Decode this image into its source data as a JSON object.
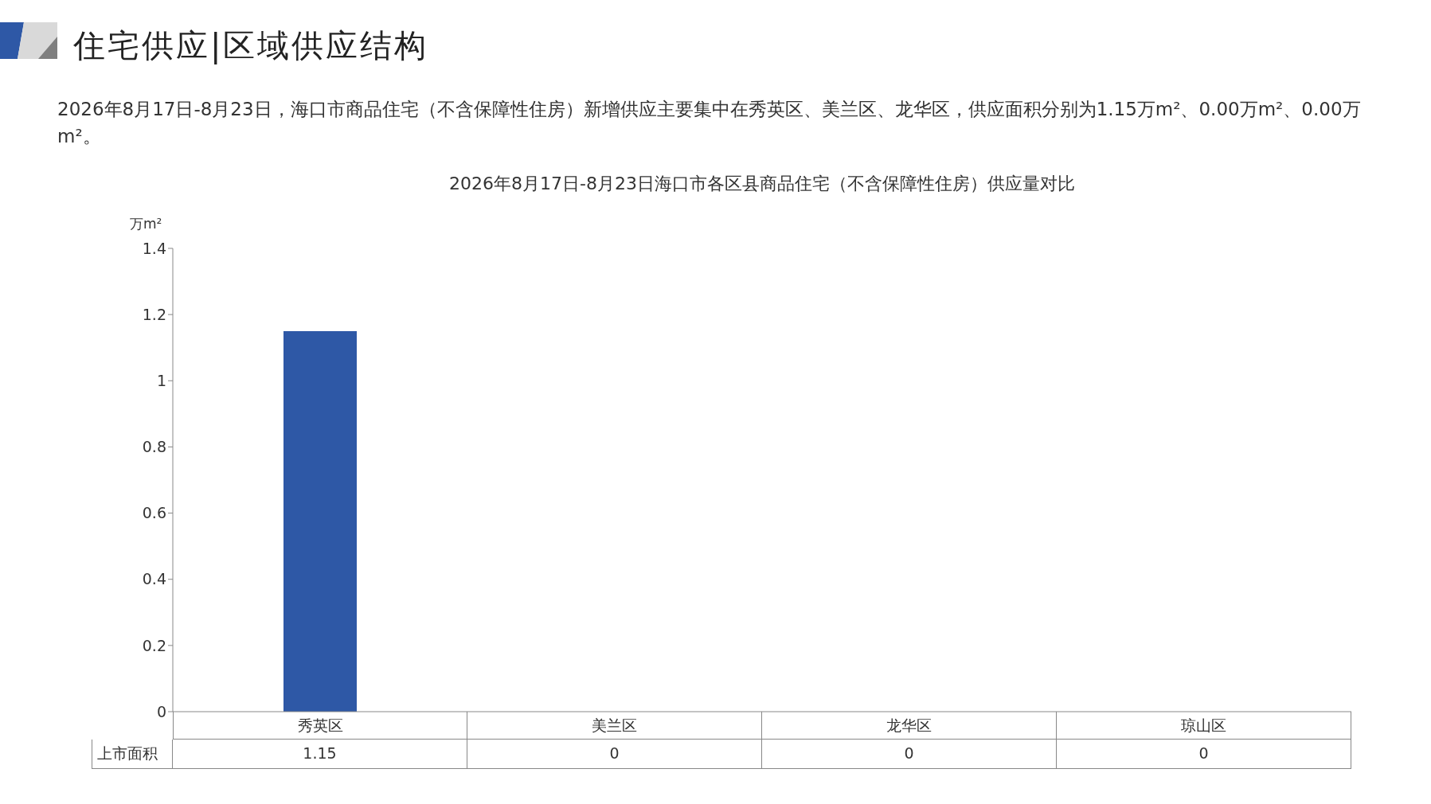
{
  "chart_data": {
    "type": "bar",
    "title": "住宅供应|区域供应结构",
    "subtitle": "2026年8月17日-8月23日，海口市商品住宅（不含保障性住房）新增供应主要集中在秀英区、美兰区、龙华区，供应面积分别为1.15万m²、0.00万m²、0.00万m²。",
    "annotations": [
      "2026年8月17日-8月23日海口市各区县商品住宅（不含保障性住房）供应量对比"
    ],
    "ylabel": "万m²",
    "categories": [
      "秀英区",
      "美兰区",
      "龙华区",
      "琼山区"
    ],
    "series": [
      {
        "name": "上市面积",
        "color": "#2e58a6",
        "values": [
          1.15,
          0,
          0,
          0
        ]
      }
    ],
    "ylim": [
      0,
      1.4
    ],
    "yticks": [
      0,
      0.2,
      0.4,
      0.6,
      0.8,
      1,
      1.2,
      1.4
    ],
    "data_labels": true,
    "grid": false
  }
}
